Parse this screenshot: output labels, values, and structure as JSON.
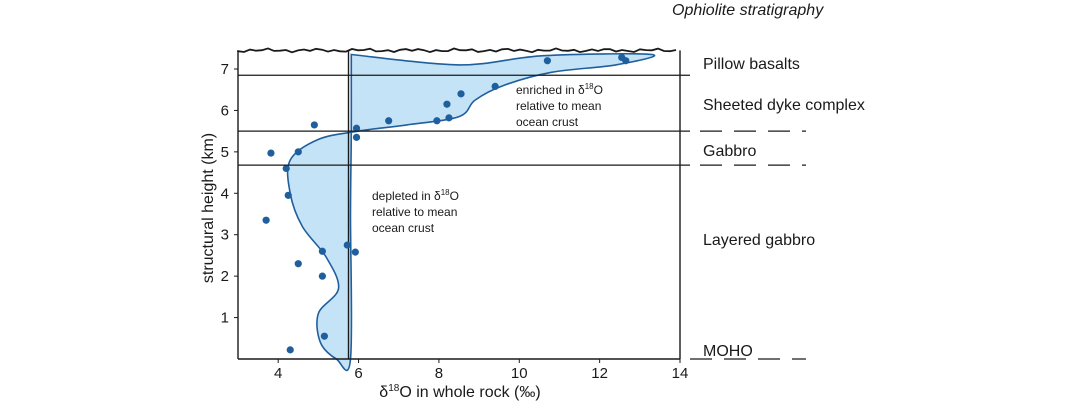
{
  "chart_data": {
    "type": "scatter",
    "xlabel": "δ18O in whole rock (‰)",
    "ylabel": "structural height (km)",
    "xlim": [
      3,
      14
    ],
    "ylim": [
      0,
      7.6
    ],
    "x_ticks": [
      "4",
      "6",
      "8",
      "10",
      "12",
      "14"
    ],
    "y_ticks": [
      "1",
      "2",
      "3",
      "4",
      "5",
      "6",
      "7"
    ],
    "mean_ocean_crust_x": 5.75,
    "points": [
      {
        "x": 4.3,
        "y": 0.22
      },
      {
        "x": 5.15,
        "y": 0.55
      },
      {
        "x": 5.1,
        "y": 2.0
      },
      {
        "x": 4.5,
        "y": 2.3
      },
      {
        "x": 5.1,
        "y": 2.6
      },
      {
        "x": 5.72,
        "y": 2.75
      },
      {
        "x": 5.92,
        "y": 2.58
      },
      {
        "x": 3.7,
        "y": 3.35
      },
      {
        "x": 4.25,
        "y": 3.95
      },
      {
        "x": 4.2,
        "y": 4.6
      },
      {
        "x": 3.82,
        "y": 4.97
      },
      {
        "x": 4.5,
        "y": 5.0
      },
      {
        "x": 4.9,
        "y": 5.65
      },
      {
        "x": 5.95,
        "y": 5.35
      },
      {
        "x": 5.95,
        "y": 5.57
      },
      {
        "x": 6.75,
        "y": 5.75
      },
      {
        "x": 7.95,
        "y": 5.75
      },
      {
        "x": 8.25,
        "y": 5.82
      },
      {
        "x": 8.2,
        "y": 6.15
      },
      {
        "x": 8.55,
        "y": 6.4
      },
      {
        "x": 9.4,
        "y": 6.58
      },
      {
        "x": 10.7,
        "y": 7.2
      },
      {
        "x": 12.55,
        "y": 7.28
      },
      {
        "x": 12.65,
        "y": 7.2
      }
    ],
    "envelope": [
      [
        5.82,
        7.35
      ],
      [
        8.5,
        7.1
      ],
      [
        10.6,
        7.32
      ],
      [
        13.3,
        7.35
      ],
      [
        12.4,
        7.1
      ],
      [
        10.8,
        6.92
      ],
      [
        9.6,
        6.6
      ],
      [
        8.9,
        6.25
      ],
      [
        8.5,
        5.85
      ],
      [
        7.2,
        5.65
      ],
      [
        6.0,
        5.5
      ],
      [
        5.0,
        5.3
      ],
      [
        4.3,
        4.8
      ],
      [
        4.3,
        4.0
      ],
      [
        4.6,
        3.2
      ],
      [
        5.2,
        2.45
      ],
      [
        5.5,
        1.7
      ],
      [
        5.0,
        1.1
      ],
      [
        5.05,
        0.4
      ],
      [
        5.45,
        0.0
      ],
      [
        5.8,
        0.0
      ],
      [
        5.8,
        3.5
      ],
      [
        5.82,
        5.5
      ],
      [
        5.82,
        7.35
      ]
    ],
    "annotations": {
      "enriched": [
        "enriched in δ18O",
        "relative to mean",
        "ocean crust"
      ],
      "depleted": [
        "depleted in δ18O",
        "relative to mean",
        "ocean crust"
      ]
    },
    "colors": {
      "fill": "#c5e3f6",
      "curve": "#1f5f9e",
      "point": "#1f5f9e",
      "frame": "#1a1a1a"
    }
  },
  "stratigraphy": {
    "title": "Ophiolite stratigraphy",
    "layers": [
      {
        "label": "Pillow basalts",
        "top_y": 7.45,
        "bottom_y": 6.85
      },
      {
        "label": "Sheeted dyke complex",
        "top_y": 6.85,
        "bottom_y": 5.5
      },
      {
        "label": "Gabbro",
        "top_y": 5.5,
        "bottom_y": 4.68
      },
      {
        "label": "Layered gabbro",
        "top_y": 4.68,
        "bottom_y": 0.0
      },
      {
        "label": "MOHO",
        "top_y": 0.0,
        "bottom_y": 0.0
      }
    ]
  }
}
